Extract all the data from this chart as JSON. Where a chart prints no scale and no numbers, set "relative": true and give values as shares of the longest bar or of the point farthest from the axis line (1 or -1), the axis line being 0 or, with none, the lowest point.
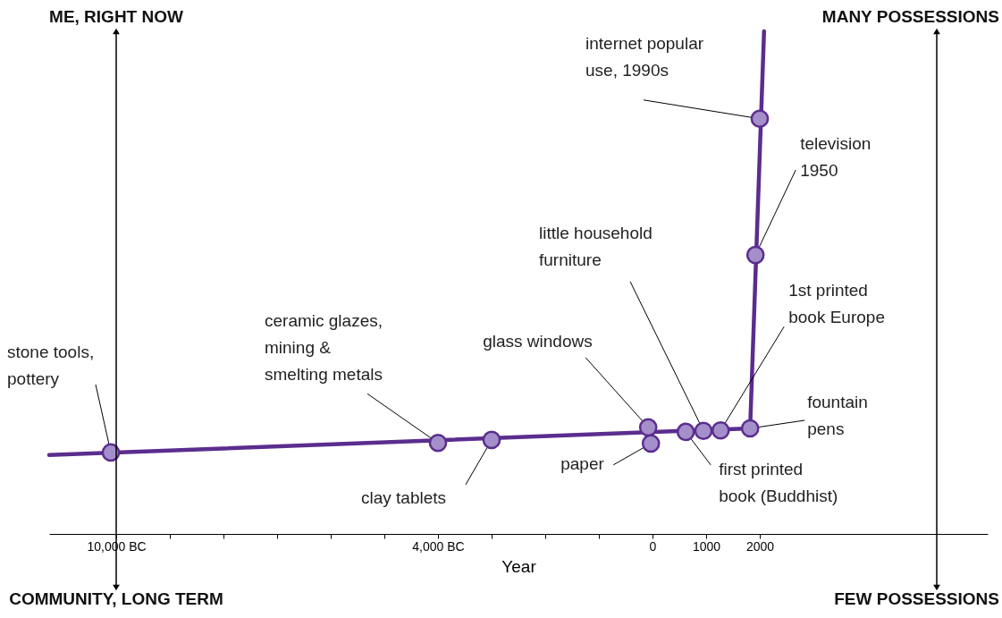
{
  "chart_data": {
    "type": "line",
    "relative": true,
    "xlabel": "Year",
    "xlim": [
      -11250,
      6250
    ],
    "xticks": [
      {
        "value": -10000,
        "label": "10,000 BC"
      },
      {
        "value": -9000,
        "label": null
      },
      {
        "value": -8000,
        "label": null
      },
      {
        "value": -7000,
        "label": null
      },
      {
        "value": -6000,
        "label": null
      },
      {
        "value": -5000,
        "label": null
      },
      {
        "value": -4000,
        "label": "4,000 BC"
      },
      {
        "value": -3000,
        "label": null
      },
      {
        "value": -2000,
        "label": null
      },
      {
        "value": -1000,
        "label": null
      },
      0,
      1000,
      2000
    ],
    "series": [
      {
        "color": "#5b2d8e",
        "marker": "none",
        "x": [
          -11250,
          1820,
          2080
        ],
        "values": [
          0.157,
          0.21,
          1
        ]
      },
      {
        "type": "scatter",
        "marker": "circle",
        "color": "#a58fcb",
        "x": [
          -10100,
          -4000,
          -3000,
          -80,
          -30,
          620,
          950,
          1270,
          1820,
          1920,
          2000
        ],
        "values": [
          0.162,
          0.181,
          0.187,
          0.212,
          0.18,
          0.203,
          0.205,
          0.206,
          0.21,
          0.555,
          0.826
        ]
      }
    ],
    "line_style": "solid",
    "grid": false,
    "legend": false,
    "ref_lines": [
      {
        "axis": "x",
        "value": -10000,
        "color": "#000000"
      },
      {
        "axis": "x",
        "value": 5300,
        "color": "#000000"
      }
    ],
    "annotations": [
      {
        "text": "stone tools,\npottery",
        "x": -10100,
        "y": 0.162
      },
      {
        "text": "ceramic glazes,\nmining &\nsmelting metals",
        "x": -4000,
        "y": 0.181
      },
      {
        "text": "clay tablets",
        "x": -3000,
        "y": 0.187
      },
      {
        "text": "glass windows",
        "x": -80,
        "y": 0.212
      },
      {
        "text": "paper",
        "x": -30,
        "y": 0.18
      },
      {
        "text": "first printed\nbook (Buddhist)",
        "x": 620,
        "y": 0.203
      },
      {
        "text": "little household\nfurniture",
        "x": 950,
        "y": 0.205
      },
      {
        "text": "1st printed\nbook Europe",
        "x": 1270,
        "y": 0.206
      },
      {
        "text": "fountain\npens",
        "x": 1820,
        "y": 0.21
      },
      {
        "text": "television\n1950",
        "x": 1920,
        "y": 0.555
      },
      {
        "text": "internet popular\nuse, 1990s",
        "x": 2000,
        "y": 0.826
      },
      "ME, RIGHT NOW",
      "MANY POSSESSIONS",
      "COMMUNITY, LONG TERM",
      "FEW POSSESSIONS"
    ]
  }
}
